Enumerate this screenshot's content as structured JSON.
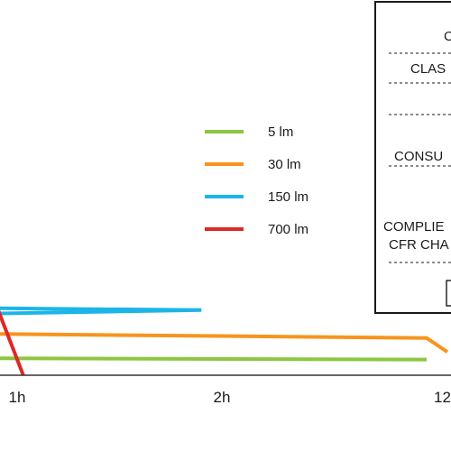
{
  "chart_data": {
    "type": "line",
    "title": "",
    "xlabel": "",
    "ylabel": "",
    "x_tick_labels": [
      "1h",
      "2h",
      "12"
    ],
    "legend_position": "center",
    "grid": false,
    "series": [
      {
        "name": "5 lm",
        "color": "#8dc63f",
        "points": [
          [
            0,
            3.0
          ],
          [
            12,
            2.7
          ]
        ]
      },
      {
        "name": "30 lm",
        "color": "#f7941d",
        "points": [
          [
            0,
            7.4
          ],
          [
            12,
            6.4
          ],
          [
            12.05,
            4.0
          ]
        ]
      },
      {
        "name": "150 lm",
        "color": "#1cb5e8",
        "points": [
          [
            0,
            11.8
          ],
          [
            1.9,
            11.2
          ],
          [
            2.06,
            0
          ]
        ]
      },
      {
        "name": "700 lm",
        "color": "#dc2a27",
        "points": [
          [
            0,
            14.8
          ],
          [
            0.87,
            14.6
          ],
          [
            1.03,
            0
          ]
        ]
      }
    ]
  },
  "info_panel": {
    "lines": [
      "C",
      "CLAS",
      "CONSU",
      "COMPLIE",
      "CFR CHA"
    ]
  }
}
